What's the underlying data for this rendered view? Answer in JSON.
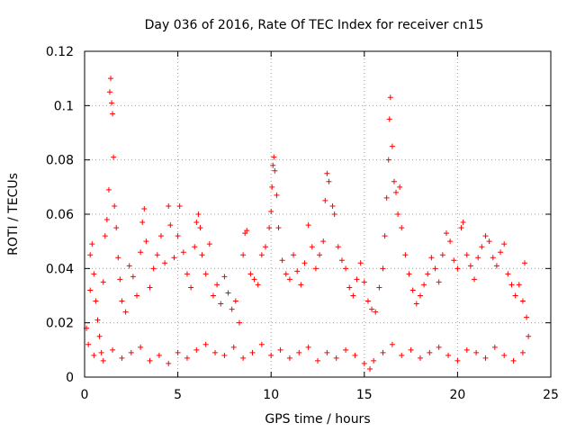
{
  "chart_data": {
    "type": "scatter",
    "title": "Day 036 of 2016, Rate Of TEC Index for receiver cn15",
    "xlabel": "GPS time / hours",
    "ylabel": "ROTI / TECUs",
    "xlim": [
      0,
      25
    ],
    "ylim": [
      0,
      0.12
    ],
    "xticks": [
      0,
      5,
      10,
      15,
      20,
      25
    ],
    "xtick_labels": [
      "0",
      "5",
      "10",
      "15",
      "20",
      "25"
    ],
    "yticks": [
      0,
      0.02,
      0.04,
      0.06,
      0.08,
      0.1,
      0.12
    ],
    "ytick_labels": [
      "0",
      "0.02",
      "0.04",
      "0.06",
      "0.08",
      "0.1",
      "0.12"
    ],
    "grid": true,
    "marker": "+",
    "color": "#ff0000",
    "series": [
      {
        "name": "ROTI",
        "points": [
          [
            0.1,
            0.018
          ],
          [
            0.2,
            0.012
          ],
          [
            0.3,
            0.032
          ],
          [
            0.3,
            0.045
          ],
          [
            0.4,
            0.049
          ],
          [
            0.5,
            0.038
          ],
          [
            0.6,
            0.028
          ],
          [
            0.7,
            0.021
          ],
          [
            0.8,
            0.015
          ],
          [
            0.9,
            0.009
          ],
          [
            1.0,
            0.035
          ],
          [
            1.1,
            0.052
          ],
          [
            1.2,
            0.058
          ],
          [
            1.3,
            0.069
          ],
          [
            1.35,
            0.105
          ],
          [
            1.4,
            0.11
          ],
          [
            1.45,
            0.101
          ],
          [
            1.5,
            0.097
          ],
          [
            1.55,
            0.081
          ],
          [
            1.6,
            0.063
          ],
          [
            1.7,
            0.055
          ],
          [
            1.8,
            0.044
          ],
          [
            1.9,
            0.036
          ],
          [
            2.0,
            0.028
          ],
          [
            2.2,
            0.024
          ],
          [
            2.4,
            0.041
          ],
          [
            2.6,
            0.037
          ],
          [
            2.8,
            0.03
          ],
          [
            3.0,
            0.046
          ],
          [
            3.1,
            0.057
          ],
          [
            3.2,
            0.062
          ],
          [
            3.3,
            0.05
          ],
          [
            3.5,
            0.033
          ],
          [
            3.7,
            0.04
          ],
          [
            3.9,
            0.045
          ],
          [
            4.1,
            0.052
          ],
          [
            4.3,
            0.042
          ],
          [
            4.5,
            0.063
          ],
          [
            4.6,
            0.056
          ],
          [
            4.8,
            0.044
          ],
          [
            5.0,
            0.052
          ],
          [
            5.1,
            0.063
          ],
          [
            5.3,
            0.046
          ],
          [
            5.5,
            0.038
          ],
          [
            5.7,
            0.033
          ],
          [
            5.9,
            0.048
          ],
          [
            6.0,
            0.057
          ],
          [
            6.1,
            0.06
          ],
          [
            6.2,
            0.055
          ],
          [
            6.3,
            0.045
          ],
          [
            6.5,
            0.038
          ],
          [
            6.7,
            0.049
          ],
          [
            6.9,
            0.03
          ],
          [
            7.1,
            0.034
          ],
          [
            7.3,
            0.027
          ],
          [
            7.5,
            0.037
          ],
          [
            7.7,
            0.031
          ],
          [
            7.9,
            0.025
          ],
          [
            8.1,
            0.028
          ],
          [
            8.3,
            0.02
          ],
          [
            8.5,
            0.045
          ],
          [
            8.6,
            0.053
          ],
          [
            8.7,
            0.054
          ],
          [
            8.9,
            0.038
          ],
          [
            9.1,
            0.036
          ],
          [
            9.3,
            0.034
          ],
          [
            9.5,
            0.045
          ],
          [
            9.7,
            0.048
          ],
          [
            9.9,
            0.055
          ],
          [
            10.0,
            0.061
          ],
          [
            10.05,
            0.07
          ],
          [
            10.1,
            0.078
          ],
          [
            10.15,
            0.081
          ],
          [
            10.2,
            0.076
          ],
          [
            10.3,
            0.067
          ],
          [
            10.4,
            0.055
          ],
          [
            10.6,
            0.043
          ],
          [
            10.8,
            0.038
          ],
          [
            11.0,
            0.036
          ],
          [
            11.2,
            0.045
          ],
          [
            11.4,
            0.039
          ],
          [
            11.6,
            0.034
          ],
          [
            11.8,
            0.042
          ],
          [
            12.0,
            0.056
          ],
          [
            12.2,
            0.048
          ],
          [
            12.4,
            0.04
          ],
          [
            12.6,
            0.045
          ],
          [
            12.8,
            0.05
          ],
          [
            12.9,
            0.065
          ],
          [
            13.0,
            0.075
          ],
          [
            13.1,
            0.072
          ],
          [
            13.3,
            0.063
          ],
          [
            13.4,
            0.06
          ],
          [
            13.6,
            0.048
          ],
          [
            13.8,
            0.043
          ],
          [
            14.0,
            0.04
          ],
          [
            14.2,
            0.033
          ],
          [
            14.4,
            0.03
          ],
          [
            14.6,
            0.036
          ],
          [
            14.8,
            0.042
          ],
          [
            15.0,
            0.035
          ],
          [
            15.2,
            0.028
          ],
          [
            15.4,
            0.025
          ],
          [
            15.6,
            0.024
          ],
          [
            15.8,
            0.033
          ],
          [
            16.0,
            0.04
          ],
          [
            16.1,
            0.052
          ],
          [
            16.2,
            0.066
          ],
          [
            16.3,
            0.08
          ],
          [
            16.35,
            0.095
          ],
          [
            16.4,
            0.103
          ],
          [
            16.5,
            0.085
          ],
          [
            16.6,
            0.072
          ],
          [
            16.7,
            0.068
          ],
          [
            16.8,
            0.06
          ],
          [
            16.9,
            0.07
          ],
          [
            17.0,
            0.055
          ],
          [
            17.2,
            0.045
          ],
          [
            17.4,
            0.038
          ],
          [
            17.6,
            0.032
          ],
          [
            17.8,
            0.027
          ],
          [
            18.0,
            0.03
          ],
          [
            18.2,
            0.034
          ],
          [
            18.4,
            0.038
          ],
          [
            18.6,
            0.044
          ],
          [
            18.8,
            0.04
          ],
          [
            19.0,
            0.035
          ],
          [
            19.2,
            0.045
          ],
          [
            19.4,
            0.053
          ],
          [
            19.6,
            0.05
          ],
          [
            19.8,
            0.043
          ],
          [
            20.0,
            0.04
          ],
          [
            20.2,
            0.055
          ],
          [
            20.3,
            0.057
          ],
          [
            20.5,
            0.045
          ],
          [
            20.7,
            0.041
          ],
          [
            20.9,
            0.036
          ],
          [
            21.1,
            0.044
          ],
          [
            21.3,
            0.048
          ],
          [
            21.5,
            0.052
          ],
          [
            21.7,
            0.05
          ],
          [
            21.9,
            0.044
          ],
          [
            22.1,
            0.041
          ],
          [
            22.3,
            0.046
          ],
          [
            22.5,
            0.049
          ],
          [
            22.7,
            0.038
          ],
          [
            22.9,
            0.034
          ],
          [
            23.1,
            0.03
          ],
          [
            23.3,
            0.034
          ],
          [
            23.5,
            0.028
          ],
          [
            23.6,
            0.042
          ],
          [
            23.7,
            0.022
          ],
          [
            23.8,
            0.015
          ],
          [
            0.5,
            0.008
          ],
          [
            1.0,
            0.006
          ],
          [
            1.5,
            0.01
          ],
          [
            2.0,
            0.007
          ],
          [
            2.5,
            0.009
          ],
          [
            3.0,
            0.011
          ],
          [
            3.5,
            0.006
          ],
          [
            4.0,
            0.008
          ],
          [
            4.5,
            0.005
          ],
          [
            5.0,
            0.009
          ],
          [
            5.5,
            0.007
          ],
          [
            6.0,
            0.01
          ],
          [
            6.5,
            0.012
          ],
          [
            7.0,
            0.009
          ],
          [
            7.5,
            0.008
          ],
          [
            8.0,
            0.011
          ],
          [
            8.5,
            0.007
          ],
          [
            9.0,
            0.009
          ],
          [
            9.5,
            0.012
          ],
          [
            10.0,
            0.008
          ],
          [
            10.5,
            0.01
          ],
          [
            11.0,
            0.007
          ],
          [
            11.5,
            0.009
          ],
          [
            12.0,
            0.011
          ],
          [
            12.5,
            0.006
          ],
          [
            13.0,
            0.009
          ],
          [
            13.5,
            0.007
          ],
          [
            14.0,
            0.01
          ],
          [
            14.5,
            0.008
          ],
          [
            15.0,
            0.005
          ],
          [
            15.3,
            0.003
          ],
          [
            15.5,
            0.006
          ],
          [
            16.0,
            0.009
          ],
          [
            16.5,
            0.012
          ],
          [
            17.0,
            0.008
          ],
          [
            17.5,
            0.01
          ],
          [
            18.0,
            0.007
          ],
          [
            18.5,
            0.009
          ],
          [
            19.0,
            0.011
          ],
          [
            19.5,
            0.008
          ],
          [
            20.0,
            0.006
          ],
          [
            20.5,
            0.01
          ],
          [
            21.0,
            0.009
          ],
          [
            21.5,
            0.007
          ],
          [
            22.0,
            0.011
          ],
          [
            22.5,
            0.008
          ],
          [
            23.0,
            0.006
          ],
          [
            23.5,
            0.009
          ]
        ]
      }
    ]
  }
}
